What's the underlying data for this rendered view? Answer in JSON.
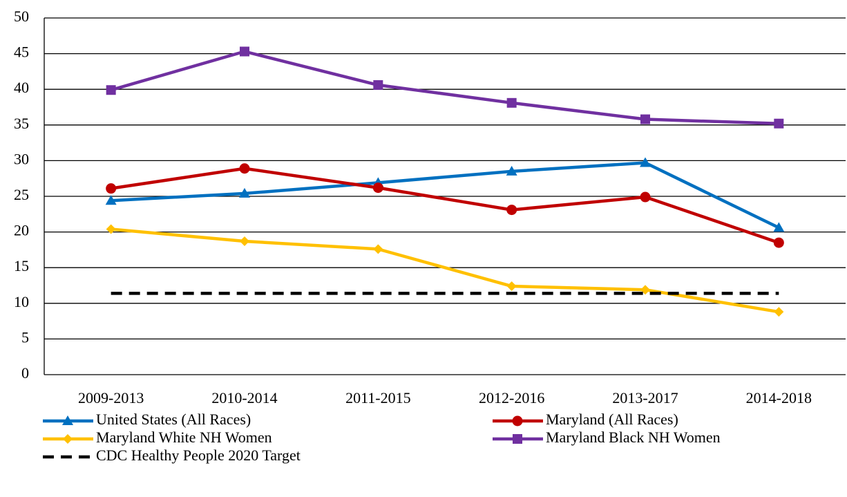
{
  "chart_data": {
    "type": "line",
    "categories": [
      "2009-2013",
      "2010-2014",
      "2011-2015",
      "2012-2016",
      "2013-2017",
      "2014-2018"
    ],
    "series": [
      {
        "name": "United States (All Races)",
        "color": "#0070c0",
        "marker": "triangle",
        "values": [
          24.4,
          25.4,
          26.9,
          28.5,
          29.7,
          20.6
        ]
      },
      {
        "name": "Maryland (All Races)",
        "color": "#c00000",
        "marker": "circle",
        "values": [
          26.1,
          28.9,
          26.2,
          23.1,
          24.9,
          18.5
        ]
      },
      {
        "name": "Maryland White NH Women",
        "color": "#ffc000",
        "marker": "diamond",
        "values": [
          20.4,
          18.7,
          17.6,
          12.4,
          11.9,
          8.8
        ]
      },
      {
        "name": "Maryland Black NH Women",
        "color": "#7030a0",
        "marker": "square",
        "values": [
          39.9,
          45.3,
          40.6,
          38.1,
          35.8,
          35.2
        ]
      },
      {
        "name": "CDC Healthy People 2020 Target",
        "color": "#000000",
        "dash": true,
        "values": [
          11.4,
          11.4,
          11.4,
          11.4,
          11.4,
          11.4
        ]
      }
    ],
    "ylim": [
      0,
      50
    ],
    "yticks": [
      0,
      5,
      10,
      15,
      20,
      25,
      30,
      35,
      40,
      45,
      50
    ],
    "grid": true
  }
}
